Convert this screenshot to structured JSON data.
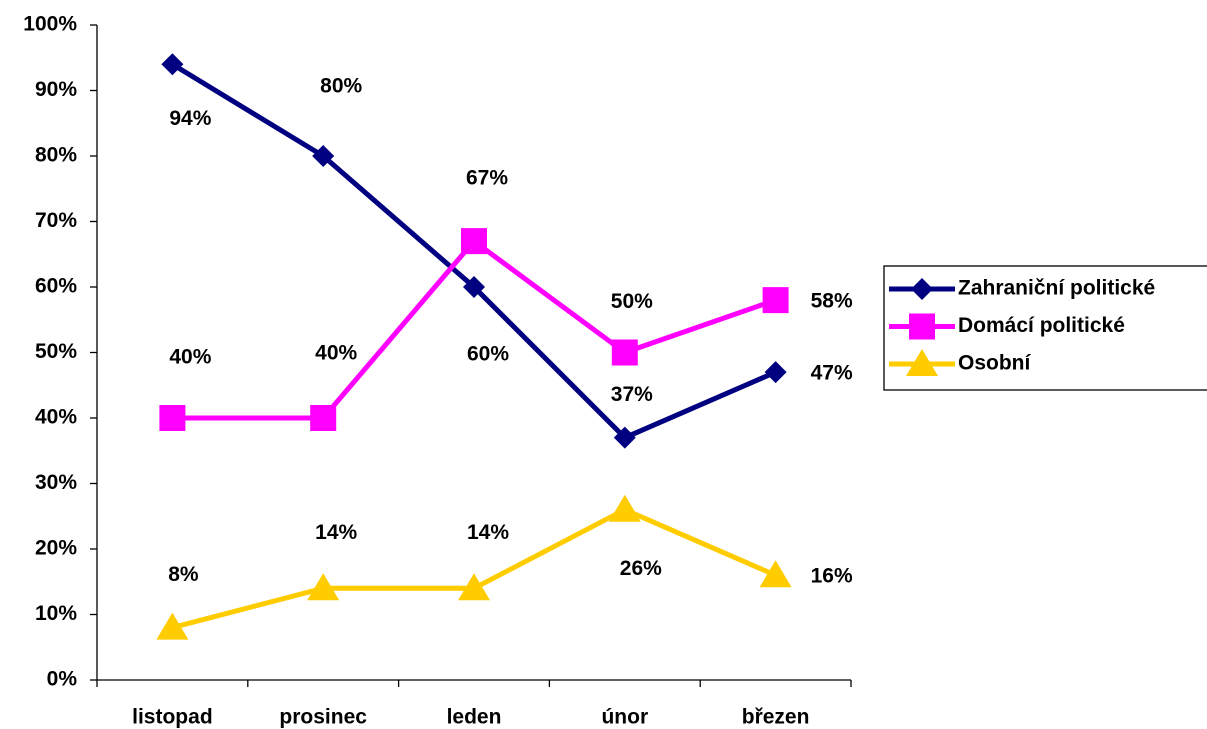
{
  "chart_data": {
    "type": "line",
    "categories": [
      "listopad",
      "prosinec",
      "leden",
      "únor",
      "březen"
    ],
    "series": [
      {
        "name": "Zahraniční politické",
        "color": "#000080",
        "marker": "diamond",
        "values": [
          94,
          80,
          60,
          37,
          47
        ],
        "value_labels": [
          "94%",
          "80%",
          "60%",
          "37%",
          "47%"
        ]
      },
      {
        "name": "Domácí politické",
        "color": "#ff00ff",
        "marker": "square",
        "values": [
          40,
          40,
          67,
          50,
          58
        ],
        "value_labels": [
          "40%",
          "40%",
          "67%",
          "50%",
          "58%"
        ]
      },
      {
        "name": "Osobní",
        "color": "#ffcc00",
        "marker": "triangle",
        "values": [
          8,
          14,
          14,
          26,
          16
        ],
        "value_labels": [
          "8%",
          "14%",
          "14%",
          "26%",
          "16%"
        ]
      }
    ],
    "ylim": [
      0,
      100
    ],
    "yticks": [
      {
        "value": 0,
        "label": "0%"
      },
      {
        "value": 10,
        "label": "10%"
      },
      {
        "value": 20,
        "label": "20%"
      },
      {
        "value": 30,
        "label": "30%"
      },
      {
        "value": 40,
        "label": "40%"
      },
      {
        "value": 50,
        "label": "50%"
      },
      {
        "value": 60,
        "label": "60%"
      },
      {
        "value": 70,
        "label": "70%"
      },
      {
        "value": 80,
        "label": "80%"
      },
      {
        "value": 90,
        "label": "90%"
      },
      {
        "value": 100,
        "label": "100%"
      }
    ],
    "grid": false,
    "legend": "right"
  }
}
